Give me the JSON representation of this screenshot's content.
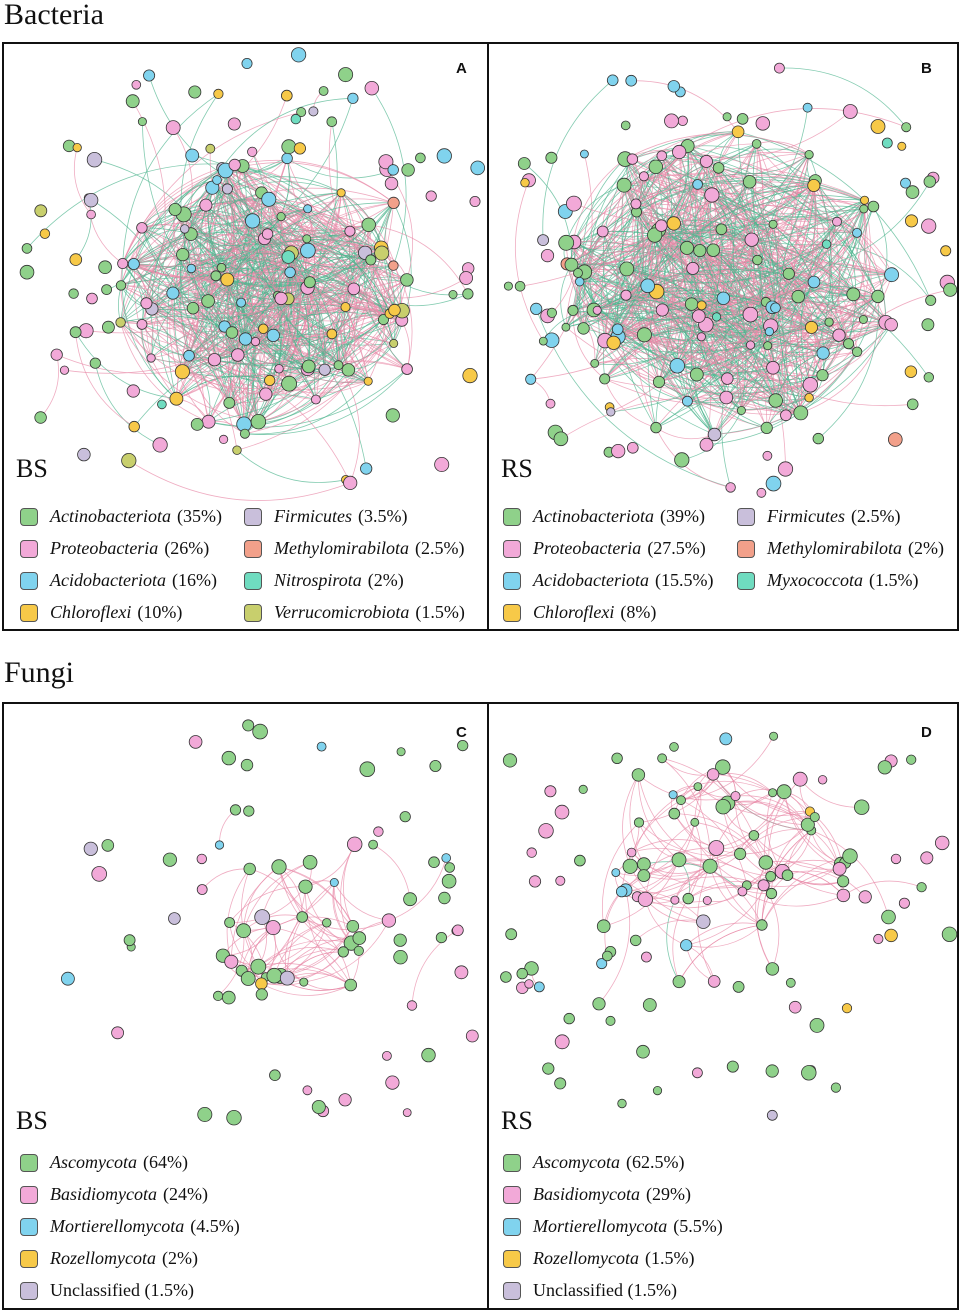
{
  "sections": {
    "bacteria": "Bacteria",
    "fungi": "Fungi"
  },
  "colors": {
    "green": "#8fd18a",
    "pink": "#f2a9d8",
    "blue": "#80d3ee",
    "yellow": "#f7c948",
    "lavender": "#c9bfdb",
    "salmon": "#f2a08a",
    "teal": "#6fdcc0",
    "olive": "#c8cf6d",
    "edge_pos": "#e88aa8",
    "edge_neg": "#4fb58f"
  },
  "panels": {
    "A": {
      "letter": "A",
      "site": "BS",
      "legend": [
        {
          "italic": "Actinobacteriota",
          "pct": "(35%)",
          "color": "green"
        },
        {
          "italic": "Proteobacteria",
          "pct": "(26%)",
          "color": "pink"
        },
        {
          "italic": "Acidobacteriota",
          "pct": " (16%)",
          "color": "blue"
        },
        {
          "italic": "Chloroflexi",
          "pct": "(10%)",
          "color": "yellow"
        },
        {
          "italic": "Firmicutes",
          "pct": "(3.5%)",
          "color": "lavender"
        },
        {
          "italic": "Methylomirabilota",
          "pct": "(2.5%)",
          "color": "salmon"
        },
        {
          "italic": "Nitrospirota",
          "pct": "(2%)",
          "color": "teal"
        },
        {
          "italic": "Verrucomicrobiota",
          "pct": "(1.5%)",
          "color": "olive"
        }
      ]
    },
    "B": {
      "letter": "B",
      "site": "RS",
      "legend": [
        {
          "italic": "Actinobacteriota",
          "pct": "(39%)",
          "color": "green"
        },
        {
          "italic": "Proteobacteria",
          "pct": "(27.5%)",
          "color": "pink"
        },
        {
          "italic": "Acidobacteriota",
          "pct": " (15.5%)",
          "color": "blue"
        },
        {
          "italic": "Chloroflexi",
          "pct": "(8%)",
          "color": "yellow"
        },
        {
          "italic": "Firmicutes",
          "pct": "(2.5%)",
          "color": "lavender"
        },
        {
          "italic": "Methylomirabilota",
          "pct": "(2%)",
          "color": "salmon"
        },
        {
          "italic": "Myxococcota",
          "pct": "(1.5%)",
          "color": "teal"
        }
      ]
    },
    "C": {
      "letter": "C",
      "site": "BS",
      "legend": [
        {
          "italic": "Ascomycota",
          "pct": "(64%)",
          "color": "green"
        },
        {
          "italic": "Basidiomycota",
          "pct": "(24%)",
          "color": "pink"
        },
        {
          "italic": "Mortierellomycota",
          "pct": "(4.5%)",
          "color": "blue"
        },
        {
          "italic": "Rozellomycota",
          "pct": "(2%)",
          "color": "yellow"
        },
        {
          "italic": "",
          "pct": "Unclassified (1.5%)",
          "color": "lavender"
        }
      ]
    },
    "D": {
      "letter": "D",
      "site": "RS",
      "legend": [
        {
          "italic": "Ascomycota",
          "pct": "(62.5%)",
          "color": "green"
        },
        {
          "italic": "Basidiomycota",
          "pct": "(29%)",
          "color": "pink"
        },
        {
          "italic": "Mortierellomycota",
          "pct": "(5.5%)",
          "color": "blue"
        },
        {
          "italic": "Rozellomycota",
          "pct": "(1.5%)",
          "color": "yellow"
        },
        {
          "italic": "",
          "pct": "Unclassified (1.5%)",
          "color": "lavender"
        }
      ]
    }
  }
}
